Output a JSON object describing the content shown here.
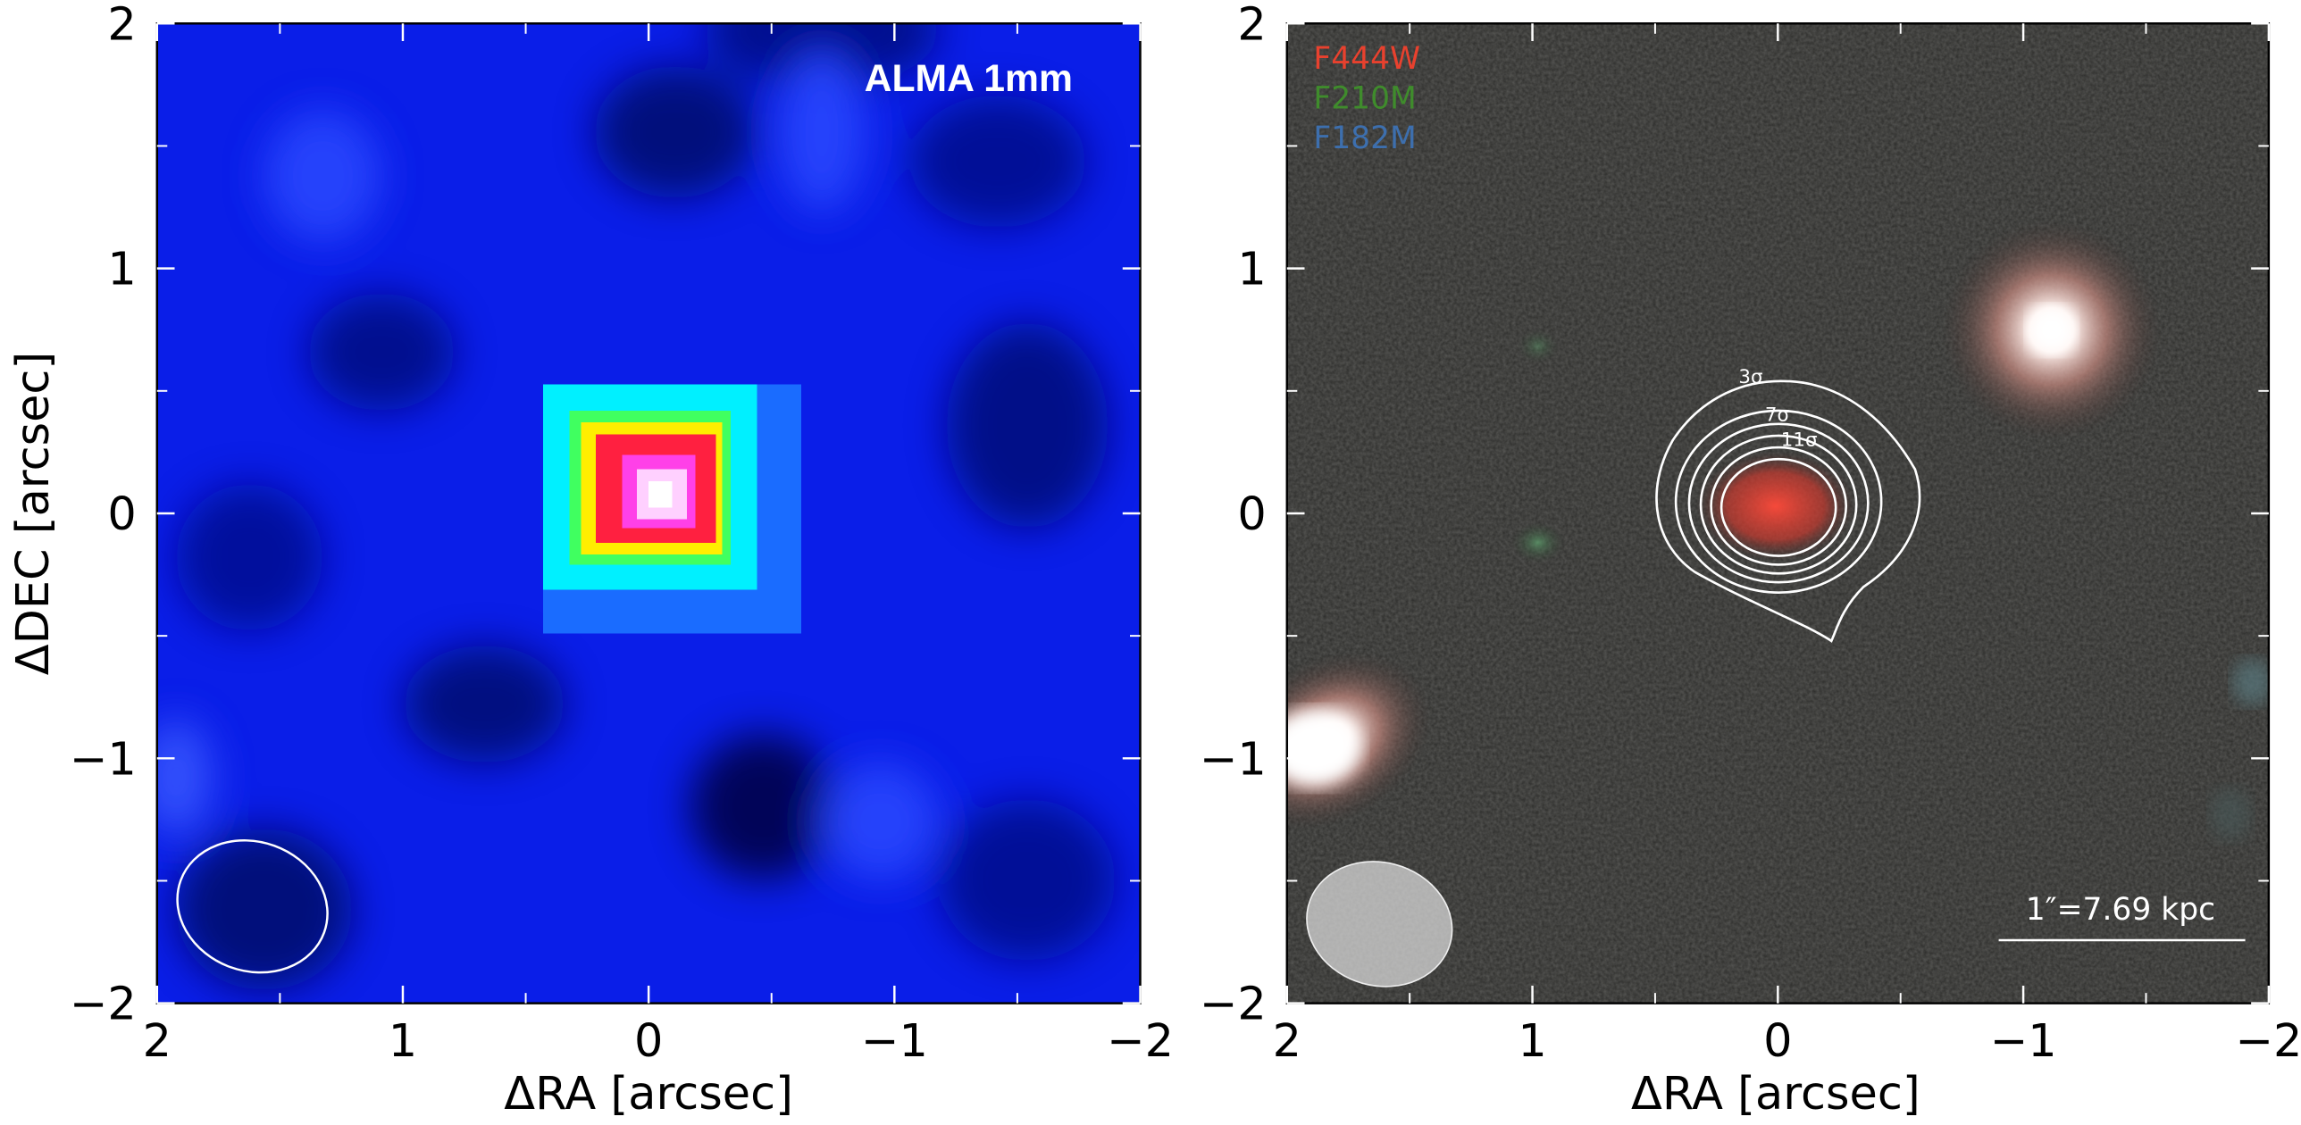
{
  "chart_data": [
    {
      "type": "image",
      "title": "ALMA 1mm",
      "xlabel": "ΔRA [arcsec]",
      "ylabel": "ΔDEC [arcsec]",
      "xlim": [
        2,
        -2
      ],
      "ylim": [
        -2,
        2
      ],
      "xticks": [
        2,
        1,
        0,
        {
          "value": -1,
          "label": "−1"
        },
        {
          "value": -2,
          "label": "−2"
        }
      ],
      "yticks": [
        {
          "value": -2,
          "label": "−2"
        },
        {
          "value": -1,
          "label": "−1"
        },
        0,
        1,
        2
      ],
      "xminorticks": [
        1.5,
        0.5,
        -0.5,
        -1.5
      ],
      "yminorticks": [
        -1.5,
        -0.5,
        0.5,
        1.5
      ]
    },
    {
      "type": "image",
      "xlabel": "ΔRA [arcsec]",
      "xlim": [
        2,
        -2
      ],
      "ylim": [
        -2,
        2
      ],
      "xticks": [
        2,
        1,
        0,
        {
          "value": -1,
          "label": "−1"
        },
        {
          "value": -2,
          "label": "−2"
        }
      ],
      "yticks": [
        {
          "value": -2,
          "label": "−2"
        },
        {
          "value": -1,
          "label": "−1"
        },
        0,
        1,
        2
      ],
      "xminorticks": [
        1.5,
        0.5,
        -0.5,
        -1.5
      ],
      "yminorticks": [
        -1.5,
        -0.5,
        0.5,
        1.5
      ],
      "filters": [
        {
          "name": "F444W",
          "color": "#e8412e"
        },
        {
          "name": "F210M",
          "color": "#3f8c2c"
        },
        {
          "name": "F182M",
          "color": "#3d6fae"
        }
      ],
      "contour_labels": [
        "3σ",
        "7σ",
        "11σ"
      ],
      "scale_bar_label": "1″=7.69 kpc"
    }
  ]
}
